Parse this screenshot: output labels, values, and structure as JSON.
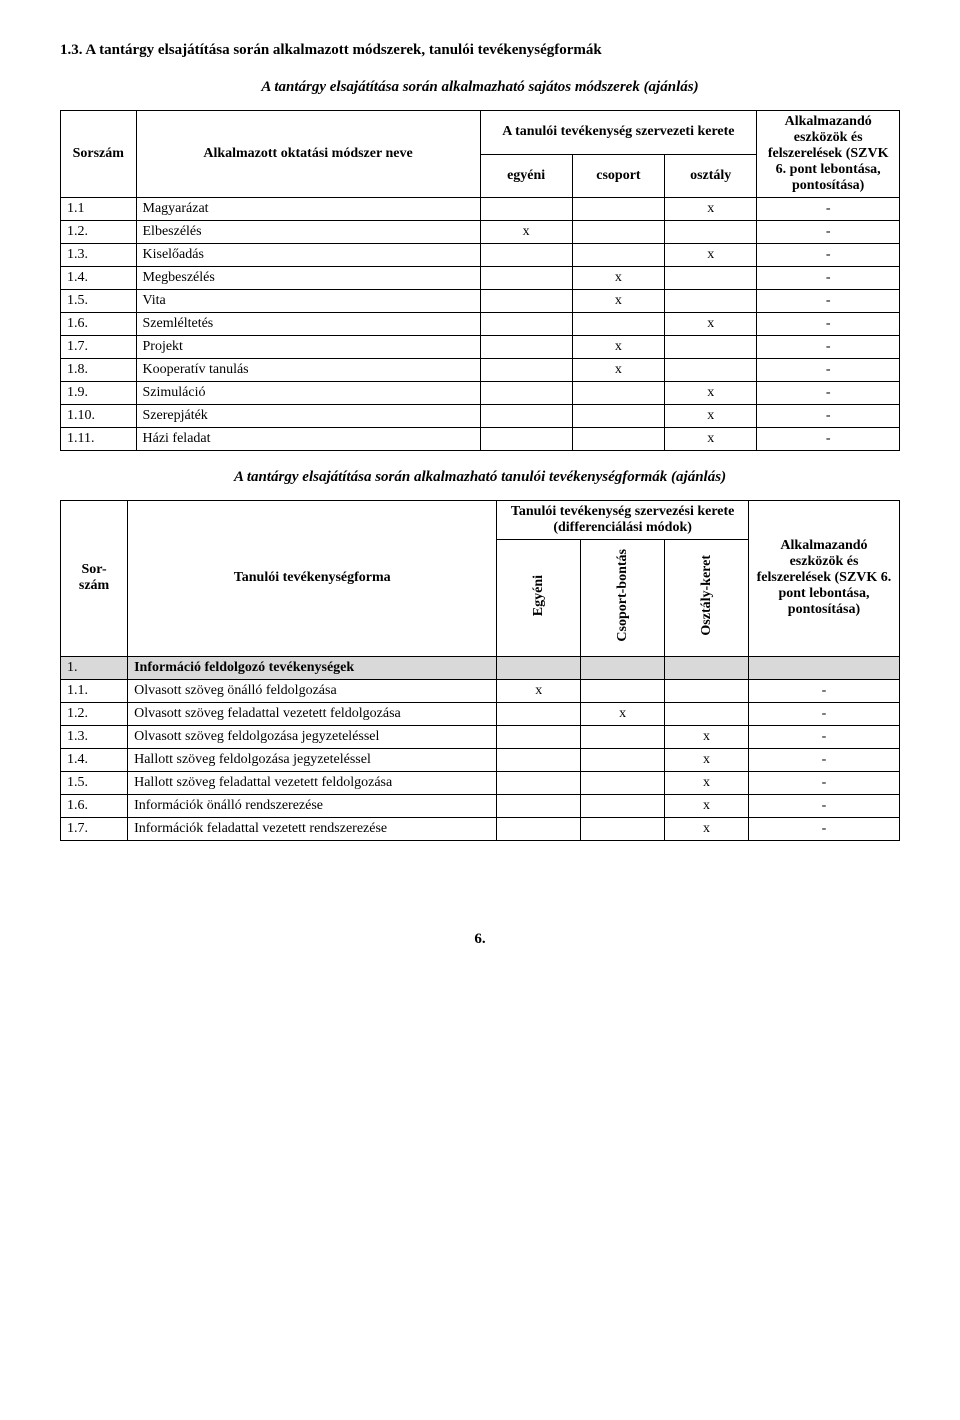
{
  "heading": "1.3. A tantárgy elsajátítása során alkalmazott módszerek, tanulói tevékenységformák",
  "subtitle1": "A tantárgy elsajátítása során alkalmazható sajátos módszerek (ajánlás)",
  "table1": {
    "h_num": "Sorszám",
    "h_method": "Alkalmazott oktatási módszer neve",
    "h_activity_top": "A tanulói tevékenység szervezeti kerete",
    "h_egyeni": "egyéni",
    "h_csoport": "csoport",
    "h_osztaly": "osztály",
    "h_tools": "Alkalmazandó eszközök és felszerelések (SZVK 6. pont lebontása, pontosítása)",
    "rows": [
      {
        "n": "1.1",
        "name": "Magyarázat",
        "e": "",
        "c": "",
        "o": "x",
        "t": "-"
      },
      {
        "n": "1.2.",
        "name": "Elbeszélés",
        "e": "x",
        "c": "",
        "o": "",
        "t": "-"
      },
      {
        "n": "1.3.",
        "name": "Kiselőadás",
        "e": "",
        "c": "",
        "o": "x",
        "t": "-"
      },
      {
        "n": "1.4.",
        "name": "Megbeszélés",
        "e": "",
        "c": "x",
        "o": "",
        "t": "-"
      },
      {
        "n": "1.5.",
        "name": "Vita",
        "e": "",
        "c": "x",
        "o": "",
        "t": "-"
      },
      {
        "n": "1.6.",
        "name": "Szemléltetés",
        "e": "",
        "c": "",
        "o": "x",
        "t": "-"
      },
      {
        "n": "1.7.",
        "name": "Projekt",
        "e": "",
        "c": "x",
        "o": "",
        "t": "-"
      },
      {
        "n": "1.8.",
        "name": "Kooperatív tanulás",
        "e": "",
        "c": "x",
        "o": "",
        "t": "-"
      },
      {
        "n": "1.9.",
        "name": "Szimuláció",
        "e": "",
        "c": "",
        "o": "x",
        "t": "-"
      },
      {
        "n": "1.10.",
        "name": "Szerepjáték",
        "e": "",
        "c": "",
        "o": "x",
        "t": "-"
      },
      {
        "n": "1.11.",
        "name": "Házi feladat",
        "e": "",
        "c": "",
        "o": "x",
        "t": "-"
      }
    ]
  },
  "subtitle2": "A tantárgy elsajátítása során alkalmazható tanulói tevékenységformák (ajánlás)",
  "table2": {
    "h_num": "Sor-szám",
    "h_form": "Tanulói tevékenységforma",
    "h_top": "Tanulói tevékenység szervezési kerete (differenciálási módok)",
    "h_egyeni": "Egyéni",
    "h_csoport": "Csoport-bontás",
    "h_osztaly": "Osztály-keret",
    "h_tools": "Alkalmazandó eszközök és felszerelések (SZVK 6. pont lebontása, pontosítása)",
    "rows": [
      {
        "n": "1.",
        "name": "Információ feldolgozó tevékenységek",
        "e": "",
        "c": "",
        "o": "",
        "t": "",
        "shaded": true,
        "bold": true
      },
      {
        "n": "1.1.",
        "name": "Olvasott szöveg önálló feldolgozása",
        "e": "x",
        "c": "",
        "o": "",
        "t": "-"
      },
      {
        "n": "1.2.",
        "name": "Olvasott szöveg feladattal vezetett feldolgozása",
        "e": "",
        "c": "x",
        "o": "",
        "t": "-"
      },
      {
        "n": "1.3.",
        "name": "Olvasott szöveg feldolgozása jegyzeteléssel",
        "e": "",
        "c": "",
        "o": "x",
        "t": "-"
      },
      {
        "n": "1.4.",
        "name": "Hallott szöveg feldolgozása jegyzeteléssel",
        "e": "",
        "c": "",
        "o": "x",
        "t": "-"
      },
      {
        "n": "1.5.",
        "name": "Hallott szöveg feladattal vezetett feldolgozása",
        "e": "",
        "c": "",
        "o": "x",
        "t": "-"
      },
      {
        "n": "1.6.",
        "name": "Információk önálló rendszerezése",
        "e": "",
        "c": "",
        "o": "x",
        "t": "-"
      },
      {
        "n": "1.7.",
        "name": "Információk feladattal vezetett rendszerezése",
        "e": "",
        "c": "",
        "o": "x",
        "t": "-"
      }
    ]
  },
  "pagenum": "6."
}
